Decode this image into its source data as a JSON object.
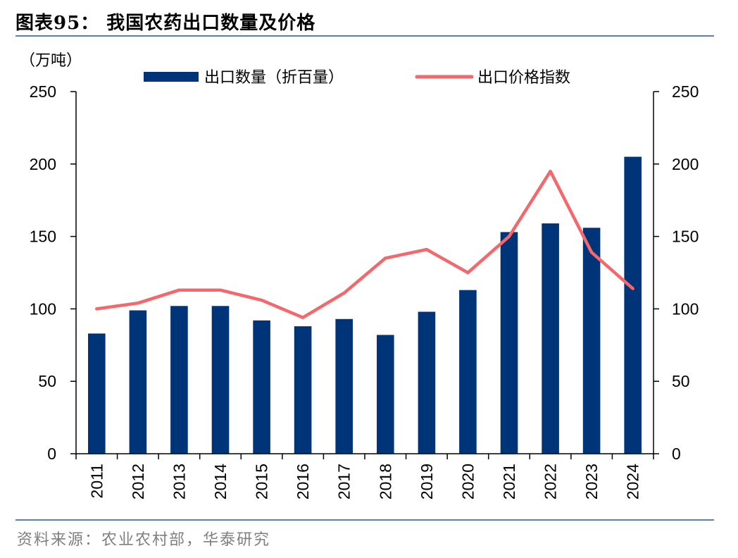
{
  "header": {
    "title": "图表95：  我国农药出口数量及价格"
  },
  "footer": {
    "source": "资料来源：农业农村部，华泰研究"
  },
  "chart_data": {
    "type": "bar",
    "categories": [
      "2011",
      "2012",
      "2013",
      "2014",
      "2015",
      "2016",
      "2017",
      "2018",
      "2019",
      "2020",
      "2021",
      "2022",
      "2023",
      "2024"
    ],
    "series": [
      {
        "name": "出口数量（折百量）",
        "type": "bar",
        "axis": "left",
        "values": [
          83,
          99,
          102,
          102,
          92,
          88,
          93,
          82,
          98,
          113,
          153,
          159,
          156,
          205
        ]
      },
      {
        "name": "出口价格指数",
        "type": "line",
        "axis": "right",
        "values": [
          100,
          104,
          113,
          113,
          106,
          94,
          111,
          135,
          141,
          125,
          150,
          195,
          139,
          114
        ]
      }
    ],
    "unit_left": "（万吨）",
    "ylim_left": [
      0,
      250
    ],
    "ylim_right": [
      0,
      250
    ],
    "yticks": [
      "0",
      "50",
      "100",
      "150",
      "200",
      "250"
    ],
    "legend_position": "top",
    "colors": {
      "bar": "#003478",
      "line": "#f4676a",
      "axis": "#000000",
      "rule": "#5b7fb3"
    }
  }
}
